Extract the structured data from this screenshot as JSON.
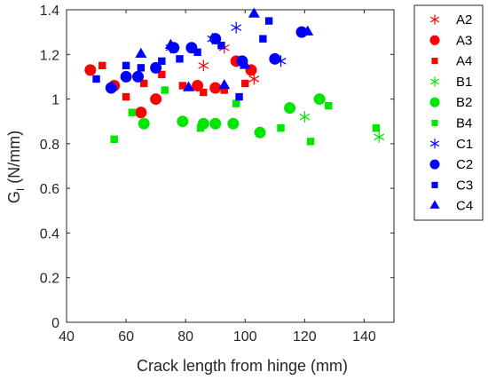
{
  "colors": {
    "red": "#ff0000",
    "green": "#00e600",
    "blue": "#0000ff",
    "axis": "#262626"
  },
  "chart_data": {
    "type": "scatter",
    "xlabel": "Crack length from hinge (mm)",
    "ylabel_main": "G",
    "ylabel_sub": "I",
    "ylabel_unit": " (N/mm)",
    "xlim": [
      40,
      150
    ],
    "ylim": [
      0,
      1.4
    ],
    "xticks": [
      40,
      60,
      80,
      100,
      120,
      140
    ],
    "xtick_labels": [
      "40",
      "60",
      "80",
      "100",
      "120",
      "140"
    ],
    "yticks": [
      0,
      0.2,
      0.4,
      0.6,
      0.8,
      1.0,
      1.2,
      1.4
    ],
    "ytick_labels": [
      "0",
      "0.2",
      "0.4",
      "0.6",
      "0.8",
      "1",
      "1.2",
      "1.4"
    ],
    "grid": false,
    "legend": "outside-right",
    "series": [
      {
        "name": "A2",
        "marker": "asterisk",
        "color": "#ff0000",
        "x": [
          86,
          93,
          103
        ],
        "y": [
          1.15,
          1.23,
          1.09
        ]
      },
      {
        "name": "A3",
        "marker": "circle",
        "color": "#ff0000",
        "x": [
          48,
          56,
          65,
          70,
          84,
          90,
          97,
          102
        ],
        "y": [
          1.13,
          1.06,
          0.94,
          1.0,
          1.06,
          1.05,
          1.17,
          1.13
        ]
      },
      {
        "name": "A4",
        "marker": "square",
        "color": "#ff0000",
        "x": [
          52,
          60,
          66,
          72,
          79,
          86,
          93,
          100
        ],
        "y": [
          1.15,
          1.01,
          1.07,
          1.11,
          1.06,
          1.03,
          1.04,
          1.07
        ]
      },
      {
        "name": "B1",
        "marker": "asterisk",
        "color": "#00e600",
        "x": [
          120,
          145
        ],
        "y": [
          0.92,
          0.83
        ]
      },
      {
        "name": "B2",
        "marker": "circle",
        "color": "#00e600",
        "x": [
          66,
          79,
          86,
          90,
          96,
          105,
          115,
          125
        ],
        "y": [
          0.89,
          0.9,
          0.89,
          0.89,
          0.89,
          0.85,
          0.96,
          1.0
        ]
      },
      {
        "name": "B4",
        "marker": "square",
        "color": "#00e600",
        "x": [
          56,
          62,
          73,
          85,
          97,
          112,
          122,
          128,
          144
        ],
        "y": [
          0.82,
          0.94,
          1.04,
          0.87,
          0.98,
          0.87,
          0.81,
          0.97,
          0.87
        ]
      },
      {
        "name": "C1",
        "marker": "asterisk",
        "color": "#0000ff",
        "x": [
          75,
          89,
          97,
          112
        ],
        "y": [
          1.23,
          1.27,
          1.32,
          1.17
        ]
      },
      {
        "name": "C2",
        "marker": "circle",
        "color": "#0000ff",
        "x": [
          55,
          60,
          64,
          70,
          76,
          82,
          90,
          99,
          110,
          119
        ],
        "y": [
          1.05,
          1.1,
          1.1,
          1.14,
          1.23,
          1.23,
          1.27,
          1.17,
          1.18,
          1.3
        ]
      },
      {
        "name": "C3",
        "marker": "square",
        "color": "#0000ff",
        "x": [
          50,
          60,
          65,
          72,
          78,
          84,
          92,
          98,
          106,
          108
        ],
        "y": [
          1.09,
          1.15,
          1.14,
          1.17,
          1.18,
          1.21,
          1.24,
          1.01,
          1.27,
          1.35
        ]
      },
      {
        "name": "C4",
        "marker": "triangle",
        "color": "#0000ff",
        "x": [
          65,
          75,
          81,
          93,
          100,
          103,
          121
        ],
        "y": [
          1.2,
          1.24,
          1.05,
          1.06,
          1.15,
          1.38,
          1.3
        ]
      }
    ]
  }
}
